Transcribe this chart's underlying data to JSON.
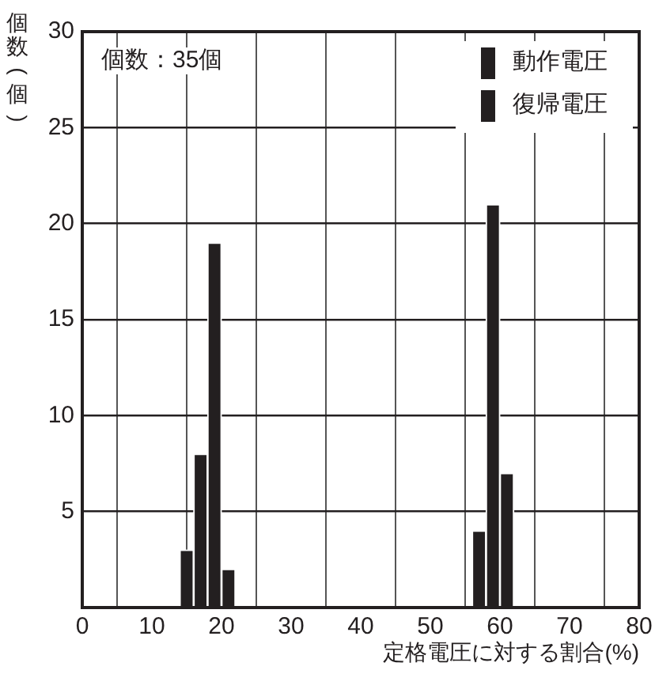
{
  "chart_data": {
    "type": "histogram",
    "xlabel": "定格電圧に対する割合(%)",
    "ylabel": "個数(個)",
    "annotations": [
      "個数：35個"
    ],
    "bins": [
      14,
      16,
      18,
      20,
      22,
      24,
      26,
      28,
      30,
      32,
      34,
      36,
      38,
      40,
      42,
      44,
      46,
      48,
      50,
      52,
      54,
      56,
      58,
      60,
      62
    ],
    "series": [
      {
        "name": "動作電圧",
        "color": "#231f20",
        "values": [
          0,
          0,
          0,
          0,
          0,
          0,
          0,
          0,
          0,
          0,
          0,
          0,
          0,
          0,
          0,
          0,
          0,
          0,
          0,
          0,
          0,
          4,
          21,
          7
        ]
      },
      {
        "name": "復帰電圧",
        "color": "#231f20",
        "values": [
          3,
          8,
          19,
          2,
          0,
          0,
          0,
          0,
          0,
          0,
          0,
          0,
          0,
          0,
          0,
          0,
          0,
          0,
          0,
          0,
          0,
          0,
          0,
          0
        ]
      }
    ],
    "xlim": [
      0,
      80
    ],
    "xticks": [
      0,
      10,
      20,
      30,
      40,
      50,
      60,
      70,
      80
    ],
    "ylim": [
      0,
      30
    ],
    "yticks": [
      {
        "value": 0,
        "label": null
      },
      5,
      10,
      15,
      20,
      25,
      30
    ],
    "grid": true,
    "legend": "top right"
  }
}
